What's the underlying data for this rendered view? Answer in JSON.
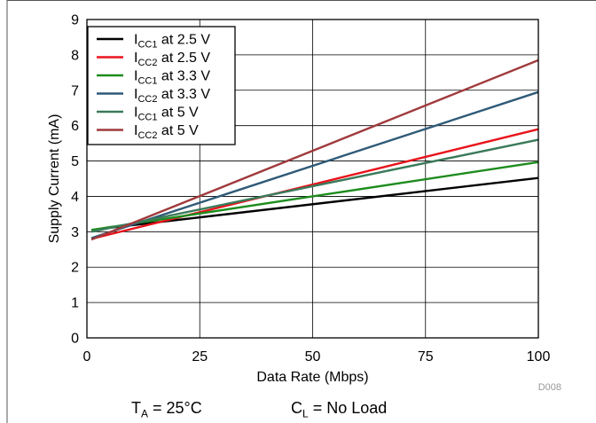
{
  "chart_data": {
    "type": "line",
    "title": "",
    "xlabel": "Data Rate (Mbps)",
    "ylabel": "Supply Current (mA)",
    "xlim": [
      0,
      100
    ],
    "ylim": [
      0,
      9
    ],
    "xticks": [
      0,
      25,
      50,
      75,
      100
    ],
    "xtick_labels": [
      "0",
      "25",
      "50",
      "75",
      "100"
    ],
    "yticks": [
      0,
      1,
      2,
      3,
      4,
      5,
      6,
      7,
      8,
      9
    ],
    "ytick_labels": [
      "0",
      "1",
      "2",
      "3",
      "4",
      "5",
      "6",
      "7",
      "8",
      "9"
    ],
    "grid": true,
    "legend_position": "top-left",
    "series": [
      {
        "name": "ICC1 at 2.5 V",
        "main": "I",
        "sub": "CC1",
        "rest": " at 2.5 V",
        "color": "#000000",
        "x": [
          1,
          100
        ],
        "y": [
          3.05,
          4.52
        ]
      },
      {
        "name": "ICC2 at 2.5 V",
        "main": "I",
        "sub": "CC2",
        "rest": " at 2.5 V",
        "color": "#e8141b",
        "x": [
          1,
          100
        ],
        "y": [
          2.8,
          5.9
        ]
      },
      {
        "name": "ICC1 at 3.3 V",
        "main": "I",
        "sub": "CC1",
        "rest": " at 3.3 V",
        "color": "#1e8c1e",
        "x": [
          1,
          100
        ],
        "y": [
          3.05,
          4.97
        ]
      },
      {
        "name": "ICC2 at 3.3 V",
        "main": "I",
        "sub": "CC2",
        "rest": " at 3.3 V",
        "color": "#2f5a78",
        "x": [
          1,
          100
        ],
        "y": [
          2.82,
          6.95
        ]
      },
      {
        "name": "ICC1 at 5 V",
        "main": "I",
        "sub": "CC1",
        "rest": " at 5 V",
        "color": "#3a7a5a",
        "x": [
          1,
          100
        ],
        "y": [
          3.0,
          5.6
        ]
      },
      {
        "name": "ICC2 at 5 V",
        "main": "I",
        "sub": "CC2",
        "rest": " at 5 V",
        "color": "#a03a3c",
        "x": [
          1,
          100
        ],
        "y": [
          2.78,
          7.85
        ]
      }
    ],
    "figure_id": "D008"
  },
  "conditions": {
    "ta_main": "T",
    "ta_sub": "A",
    "ta_rest": " = 25°C",
    "cl_main": "C",
    "cl_sub": "L",
    "cl_rest": " = No Load"
  },
  "colors": {
    "frame": "#555555",
    "grid": "#000000",
    "background": "#ffffff"
  }
}
